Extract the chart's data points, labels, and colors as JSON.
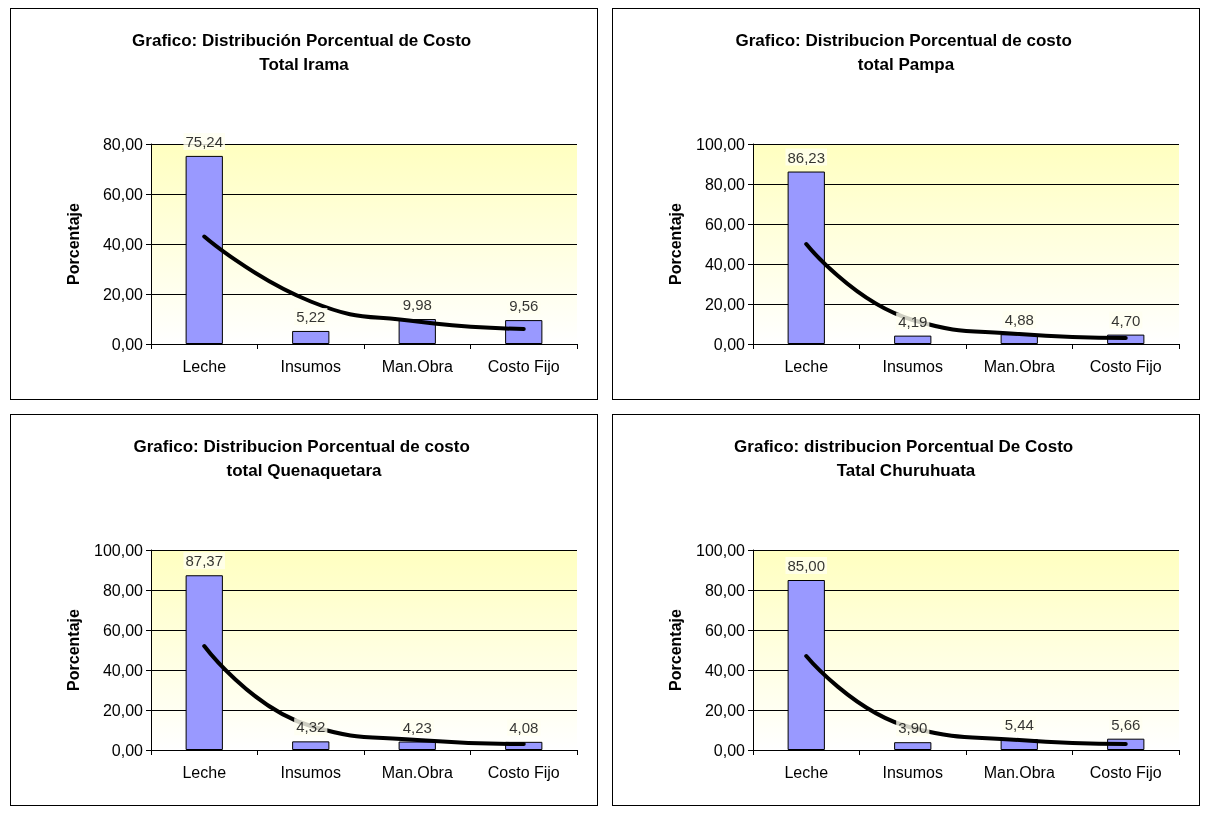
{
  "chart_data": [
    {
      "type": "bar",
      "title": "Grafico: Distribución Porcentual de Costo Total Irama",
      "ylabel": "Porcentaje",
      "categories": [
        "Leche",
        "Insumos",
        "Man.Obra",
        "Costo Fijo"
      ],
      "series": [
        {
          "color": "#9999ff",
          "values": [
            75.24,
            5.22,
            9.98,
            9.56
          ],
          "value_labels": [
            "75,24",
            "5,22",
            "9,98",
            "9,56"
          ]
        },
        {
          "type": "line",
          "color": "#000000",
          "x": [
            "Leche",
            "Insumos",
            "Man.Obra",
            "Costo Fijo"
          ],
          "values": [
            43,
            17,
            9,
            6
          ]
        }
      ],
      "ylim": [
        0,
        80
      ],
      "yticks": [
        {
          "value": 0,
          "label": "0,00"
        },
        {
          "value": 20,
          "label": "20,00"
        },
        {
          "value": 40,
          "label": "40,00"
        },
        {
          "value": 60,
          "label": "60,00"
        },
        {
          "value": 80,
          "label": "80,00"
        }
      ],
      "grid": "y",
      "marker": "none"
    },
    {
      "type": "bar",
      "title": "Grafico: Distribucion Porcentual de costo total Pampa",
      "ylabel": "Porcentaje",
      "categories": [
        "Leche",
        "Insumos",
        "Man.Obra",
        "Costo Fijo"
      ],
      "series": [
        {
          "color": "#9999ff",
          "values": [
            86.23,
            4.19,
            4.88,
            4.7
          ],
          "value_labels": [
            "86,23",
            "4,19",
            "4,88",
            "4,70"
          ]
        },
        {
          "type": "line",
          "color": "#000000",
          "x": [
            "Leche",
            "Insumos",
            "Man.Obra",
            "Costo Fijo"
          ],
          "values": [
            50,
            12,
            5,
            3
          ]
        }
      ],
      "ylim": [
        0,
        100
      ],
      "yticks": [
        {
          "value": 0,
          "label": "0,00"
        },
        {
          "value": 20,
          "label": "20,00"
        },
        {
          "value": 40,
          "label": "40,00"
        },
        {
          "value": 60,
          "label": "60,00"
        },
        {
          "value": 80,
          "label": "80,00"
        },
        {
          "value": 100,
          "label": "100,00"
        }
      ],
      "grid": "y",
      "marker": "none"
    },
    {
      "type": "bar",
      "title": "Grafico: Distribucion Porcentual de costo total Quenaquetara",
      "ylabel": "Porcentaje",
      "categories": [
        "Leche",
        "Insumos",
        "Man.Obra",
        "Costo Fijo"
      ],
      "series": [
        {
          "color": "#9999ff",
          "values": [
            87.37,
            4.32,
            4.23,
            4.08
          ],
          "value_labels": [
            "87,37",
            "4,32",
            "4,23",
            "4,08"
          ]
        },
        {
          "type": "line",
          "color": "#000000",
          "x": [
            "Leche",
            "Insumos",
            "Man.Obra",
            "Costo Fijo"
          ],
          "values": [
            52,
            12,
            5,
            3
          ]
        }
      ],
      "ylim": [
        0,
        100
      ],
      "yticks": [
        {
          "value": 0,
          "label": "0,00"
        },
        {
          "value": 20,
          "label": "20,00"
        },
        {
          "value": 40,
          "label": "40,00"
        },
        {
          "value": 60,
          "label": "60,00"
        },
        {
          "value": 80,
          "label": "80,00"
        },
        {
          "value": 100,
          "label": "100,00"
        }
      ],
      "grid": "y",
      "marker": "none"
    },
    {
      "type": "bar",
      "title": "Grafico: distribucion Porcentual De Costo Tatal Churuhuata",
      "ylabel": "Porcentaje",
      "categories": [
        "Leche",
        "Insumos",
        "Man.Obra",
        "Costo Fijo"
      ],
      "series": [
        {
          "color": "#9999ff",
          "values": [
            85,
            3.9,
            5.44,
            5.66
          ],
          "value_labels": [
            "85,00",
            "3,90",
            "5,44",
            "5,66"
          ]
        },
        {
          "type": "line",
          "color": "#000000",
          "x": [
            "Leche",
            "Insumos",
            "Man.Obra",
            "Costo Fijo"
          ],
          "values": [
            47,
            11,
            5,
            3
          ]
        }
      ],
      "ylim": [
        0,
        100
      ],
      "yticks": [
        {
          "value": 0,
          "label": "0,00"
        },
        {
          "value": 20,
          "label": "20,00"
        },
        {
          "value": 40,
          "label": "40,00"
        },
        {
          "value": 60,
          "label": "60,00"
        },
        {
          "value": 80,
          "label": "80,00"
        },
        {
          "value": 100,
          "label": "100,00"
        }
      ],
      "grid": "y",
      "marker": "none"
    }
  ]
}
